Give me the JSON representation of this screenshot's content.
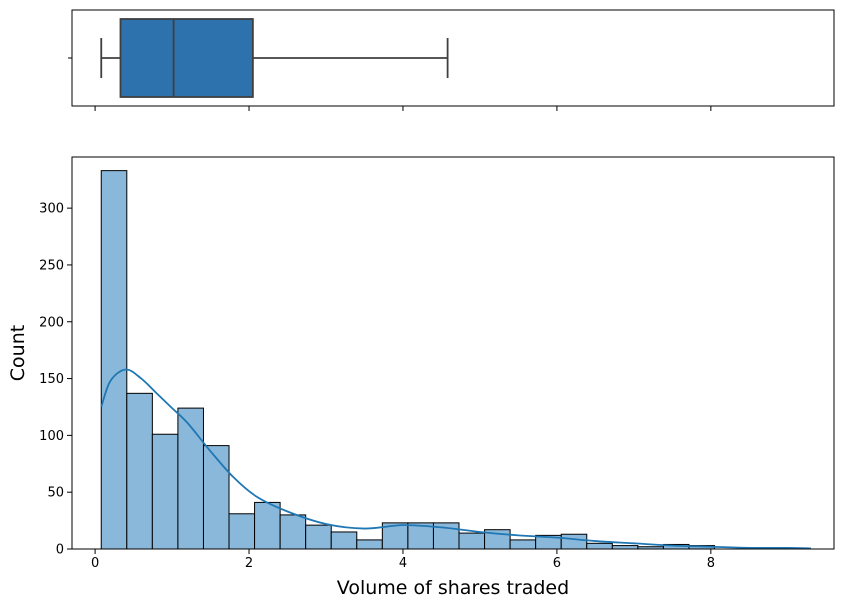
{
  "chart_data": [
    {
      "type": "boxplot",
      "title": "",
      "orientation": "horizontal",
      "stats": {
        "whisker_low": 0.08,
        "q1": 0.33,
        "median": 1.02,
        "q3": 2.05,
        "whisker_high": 4.58
      },
      "xlim": [
        -0.3,
        9.6
      ],
      "x_ticks": [
        0,
        2,
        4,
        6,
        8
      ],
      "color": "#2e72ad"
    },
    {
      "type": "bar",
      "subtype": "histogram_with_kde",
      "title": "",
      "xlabel": "Volume of shares traded",
      "ylabel": "Count",
      "xlim": [
        -0.3,
        9.6
      ],
      "ylim": [
        0,
        345
      ],
      "x_ticks": [
        "0",
        "2",
        "4",
        "6",
        "8"
      ],
      "y_ticks": [
        "0",
        "50",
        "100",
        "150",
        "200",
        "250",
        "300"
      ],
      "bin_start": 0.08,
      "bin_width": 0.332,
      "values": [
        333,
        137,
        101,
        124,
        91,
        31,
        41,
        30,
        21,
        15,
        8,
        23,
        23,
        23,
        14,
        17,
        8,
        12,
        13,
        5,
        3,
        2,
        4,
        3
      ],
      "kde": {
        "x": [
          0.08,
          0.2,
          0.4,
          0.6,
          0.8,
          1.0,
          1.2,
          1.5,
          1.8,
          2.1,
          2.5,
          3.0,
          3.5,
          4.0,
          4.5,
          5.0,
          5.5,
          6.0,
          6.5,
          7.0,
          7.5,
          8.0,
          8.5,
          9.0,
          9.3
        ],
        "y": [
          125,
          148,
          158,
          150,
          137,
          124,
          111,
          86,
          63,
          46,
          33,
          22,
          18,
          21,
          19,
          15,
          12,
          10,
          7,
          5,
          3,
          2,
          1,
          1,
          0.5
        ]
      },
      "bar_color": "#8ab8db",
      "bar_edge": "#000000",
      "line_color": "#1f77b4"
    }
  ]
}
